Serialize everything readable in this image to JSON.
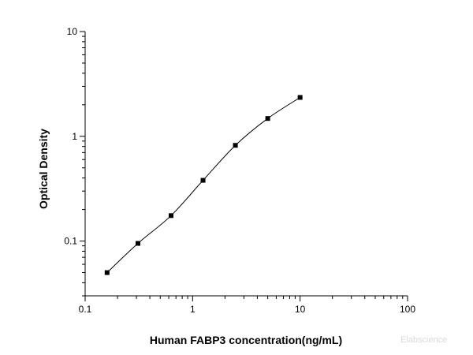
{
  "chart_data": {
    "type": "scatter",
    "xlabel": "Human FABP3 concentration(ng/mL)",
    "ylabel": "Optical Density",
    "xscale": "log",
    "yscale": "log",
    "xlim": [
      0.1,
      100
    ],
    "ylim": [
      0.03,
      10
    ],
    "x_ticks": [
      {
        "value": 0.1,
        "label": "0.1"
      },
      {
        "value": 1,
        "label": "1"
      },
      {
        "value": 10,
        "label": "10"
      },
      {
        "value": 100,
        "label": "100"
      }
    ],
    "y_ticks": [
      {
        "value": 0.1,
        "label": "0.1"
      },
      {
        "value": 1,
        "label": "1"
      },
      {
        "value": 10,
        "label": "10"
      }
    ],
    "grid": false,
    "series": [
      {
        "x": [
          0.16,
          0.31,
          0.63,
          1.25,
          2.5,
          5,
          10
        ],
        "y": [
          0.05,
          0.095,
          0.175,
          0.38,
          0.82,
          1.48,
          2.35
        ],
        "marker": "square",
        "fit_line": "smooth curve",
        "color": "#000000"
      }
    ],
    "watermark": "Elabscience"
  }
}
